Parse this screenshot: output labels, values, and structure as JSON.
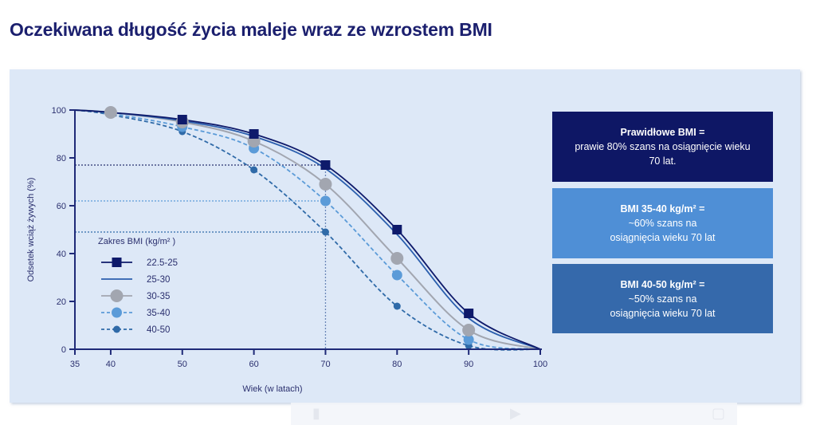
{
  "title": "Oczekiwana długość życia maleje wraz ze wzrostem BMI",
  "chart_data": {
    "type": "line",
    "title": "Oczekiwana długość życia maleje wraz ze wzrostem BMI",
    "xlabel": "Wiek (w latach)",
    "ylabel": "Odsetek wciąż żywych (%)",
    "xlim": [
      35,
      100
    ],
    "ylim": [
      0,
      100
    ],
    "x_ticks": [
      35,
      40,
      50,
      60,
      70,
      80,
      90,
      100
    ],
    "y_ticks": [
      0,
      20,
      40,
      60,
      80,
      100
    ],
    "grid": false,
    "legend_title": "Zakres BMI (kg/m² )",
    "legend_position": "lower-left",
    "x": [
      35,
      40,
      50,
      60,
      70,
      80,
      90,
      100
    ],
    "series": [
      {
        "name": "22.5-25",
        "marker": "square",
        "line": "solid",
        "color": "#0e1a6b",
        "values": [
          100,
          99,
          96,
          90,
          77,
          50,
          15,
          0
        ]
      },
      {
        "name": "25-30",
        "marker": "none",
        "line": "solid",
        "color": "#2b5fae",
        "values": [
          100,
          99,
          95.5,
          89,
          75.5,
          48,
          13,
          0
        ]
      },
      {
        "name": "30-35",
        "marker": "large-circle",
        "line": "solid",
        "color": "#a2a6b0",
        "values": [
          100,
          99,
          95,
          87,
          69,
          38,
          8,
          0
        ]
      },
      {
        "name": "35-40",
        "marker": "circle",
        "line": "dashed",
        "color": "#5b9bd8",
        "values": [
          100,
          98.5,
          93,
          84,
          62,
          31,
          4,
          0
        ]
      },
      {
        "name": "40-50",
        "marker": "small-circle",
        "line": "dashed",
        "color": "#2f6aa8",
        "values": [
          100,
          98,
          91,
          75,
          49,
          18,
          1.5,
          0
        ]
      }
    ],
    "reference_lines": [
      {
        "y": 77,
        "x": 70,
        "color": "#2a3170"
      },
      {
        "y": 62,
        "x": 70,
        "color": "#5b9bd8"
      },
      {
        "y": 49,
        "x": 70,
        "color": "#2f6aa8"
      }
    ],
    "annotations": [
      {
        "head": "Prawidłowe BMI =",
        "lines": [
          "prawie 80% szans na osiągnięcie wieku",
          "70 lat."
        ]
      },
      {
        "head": "BMI 35-40 kg/m² =",
        "lines": [
          "~60% szans na",
          "osiągnięcia wieku 70 lat"
        ]
      },
      {
        "head": "BMI 40-50 kg/m²  =",
        "lines": [
          "~50% szans na",
          "osiągnięcia wieku 70 lat"
        ]
      }
    ]
  },
  "callouts": [
    {
      "head": "Prawidłowe BMI =",
      "line1": "prawie 80% szans na osiągnięcie wieku",
      "line2": "70 lat.",
      "bg": "#0e1765"
    },
    {
      "head": "BMI 35-40 kg/m² =",
      "line1": "~60% szans na",
      "line2": "osiągnięcia wieku 70 lat",
      "bg": "#4f8fd6"
    },
    {
      "head": "BMI 40-50 kg/m²  =",
      "line1": "~50% szans na",
      "line2": "osiągnięcia wieku 70 lat",
      "bg": "#3569ab"
    }
  ]
}
